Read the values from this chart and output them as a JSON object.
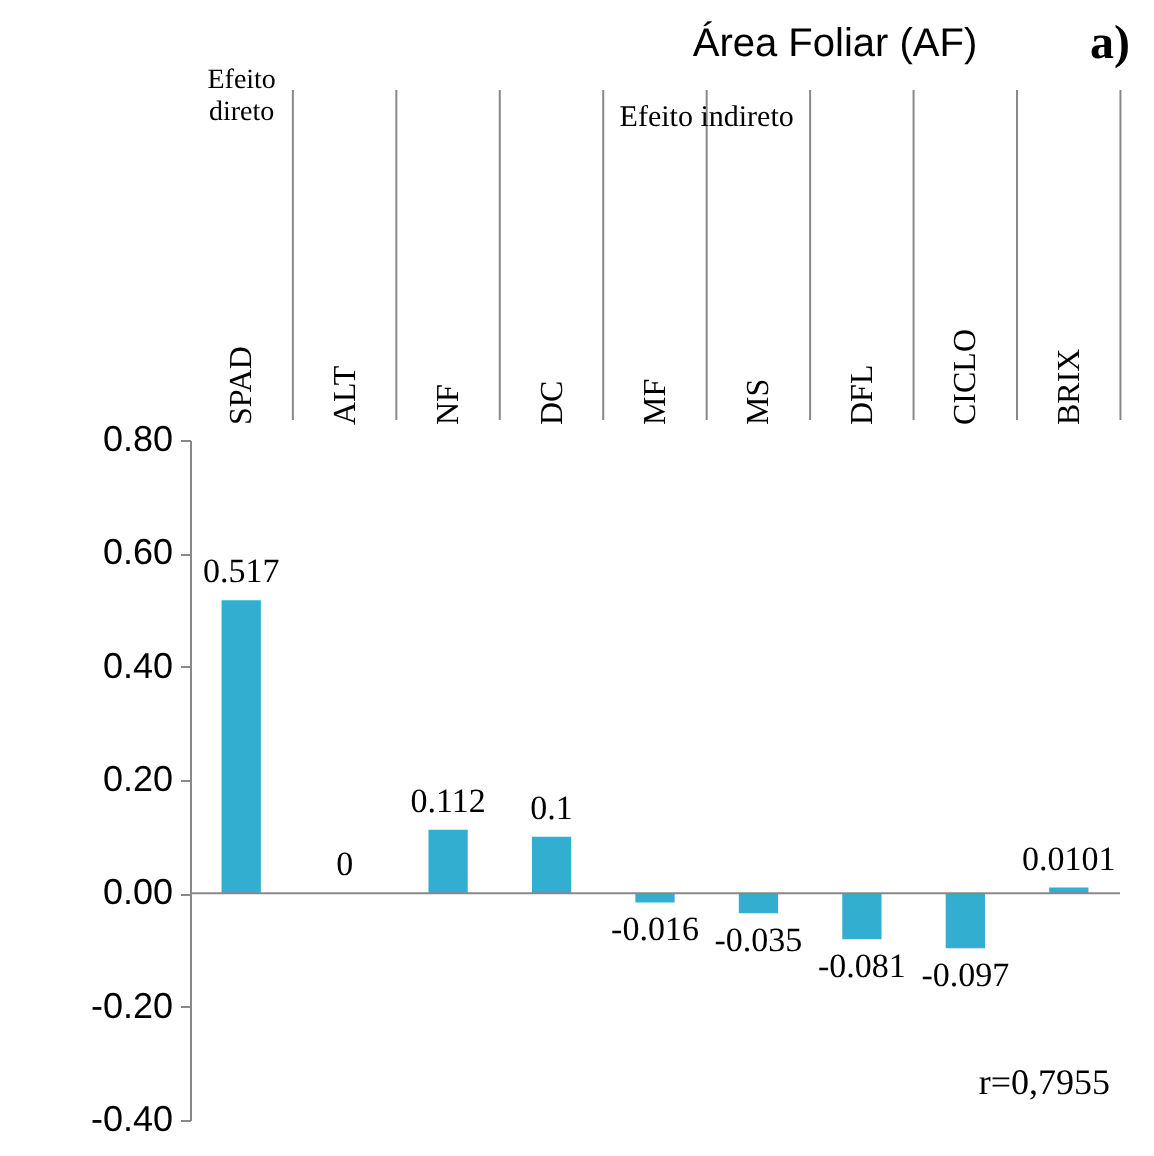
{
  "chart_data": {
    "type": "bar",
    "title": "Área Foliar (AF)",
    "categories": [
      "SPAD",
      "ALT",
      "NF",
      "DC",
      "MF",
      "MS",
      "DFL",
      "CICLO",
      "BRIX"
    ],
    "values": [
      0.517,
      0,
      0.112,
      0.1,
      -0.016,
      -0.035,
      -0.081,
      -0.097,
      0.0101
    ],
    "color": "#31aed0",
    "data_labels": true,
    "grid": false,
    "ylim": [
      -0.4,
      0.8
    ],
    "yticks": [
      {
        "value": -0.4,
        "label": "-0.40"
      },
      {
        "value": -0.2,
        "label": "-0.20"
      },
      {
        "value": 0,
        "label": "0.00"
      },
      {
        "value": 0.2,
        "label": "0.20"
      },
      {
        "value": 0.4,
        "label": "0.40"
      },
      {
        "value": 0.6,
        "label": "0.60"
      },
      {
        "value": 0.8,
        "label": "0.80"
      }
    ],
    "ref_lines": [
      {
        "axis": "y",
        "value": 0,
        "color": "#888888"
      }
    ],
    "annotations": [
      "Efeito direto",
      "Efeito indireto",
      "r=0,7955",
      "a)"
    ]
  }
}
